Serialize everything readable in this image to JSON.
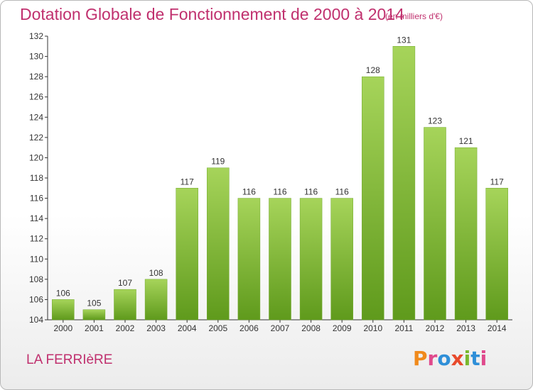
{
  "chart_data": {
    "type": "bar",
    "title": "Dotation Globale de Fonctionnement de 2000 à 2014",
    "subtitle": "(en milliers d'€)",
    "xlabel": "",
    "ylabel": "",
    "categories": [
      "2000",
      "2001",
      "2002",
      "2003",
      "2004",
      "2005",
      "2006",
      "2007",
      "2008",
      "2009",
      "2010",
      "2011",
      "2012",
      "2013",
      "2014"
    ],
    "values": [
      106,
      105,
      107,
      108,
      117,
      119,
      116,
      116,
      116,
      116,
      128,
      131,
      123,
      121,
      117
    ],
    "ylim": [
      104,
      132
    ],
    "yticks": [
      104,
      106,
      108,
      110,
      112,
      114,
      116,
      118,
      120,
      122,
      124,
      126,
      128,
      130,
      132
    ],
    "grid": false,
    "legend": "none",
    "bar_color": "#7ab82e"
  },
  "footer": {
    "place_name": "LA FERRIèRE",
    "logo_text": "Proxiti"
  },
  "colors": {
    "title": "#c0306e",
    "logo_letters": [
      "#f08a1c",
      "#e04a8c",
      "#2f8fd8",
      "#e84a2c",
      "#7ab82e",
      "#2f8fd8",
      "#e04a8c"
    ]
  }
}
